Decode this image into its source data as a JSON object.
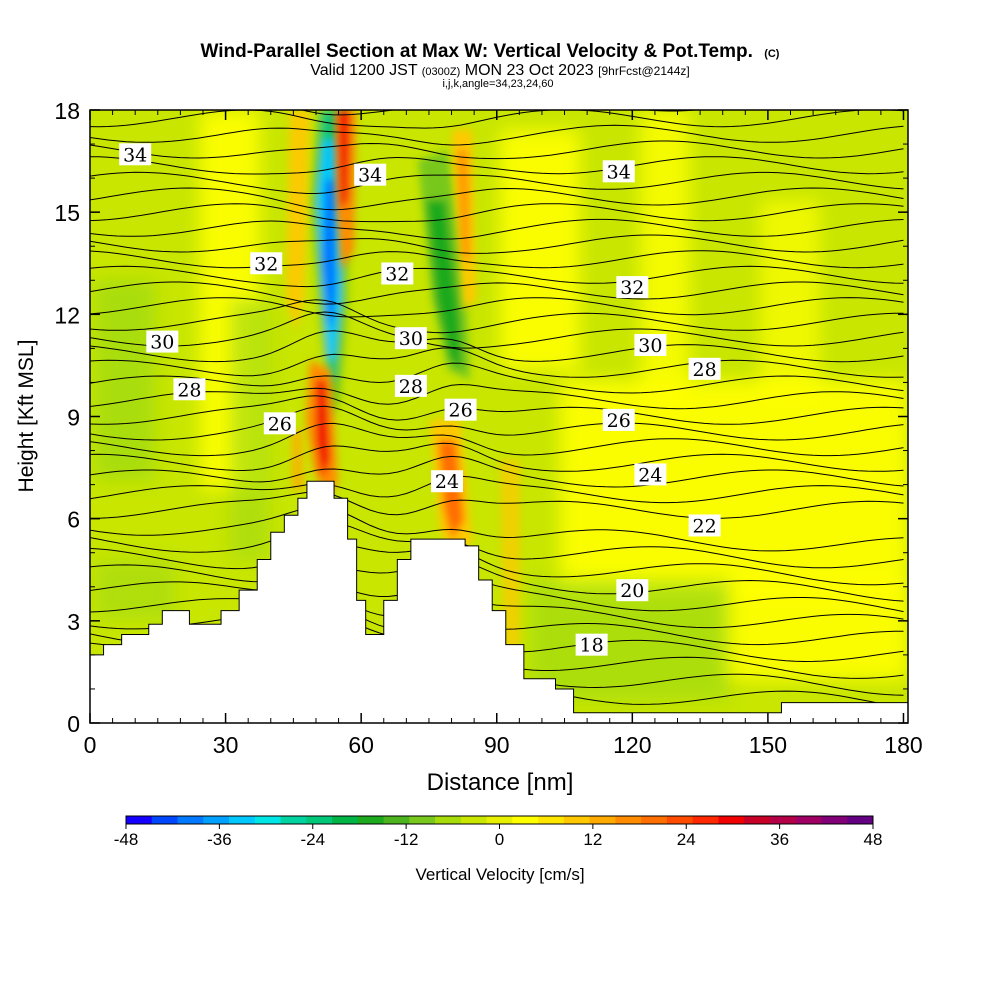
{
  "header": {
    "title": "Wind-Parallel Section at Max W: Vertical Velocity & Pot.Temp.",
    "title_units": "(C)",
    "valid_prefix": "Valid 1200 JST",
    "valid_utc": "(0300Z)",
    "valid_date": "MON 23 Oct 2023",
    "forecast": "[9hrFcst@2144z]",
    "indices": "i,j,k,angle=34,23,24,60"
  },
  "chart_data": {
    "type": "heatmap",
    "xlabel": "Distance [nm]",
    "ylabel": "Height [Kft MSL]",
    "xlim": [
      0,
      181
    ],
    "ylim": [
      0,
      18
    ],
    "x_ticks": [
      0,
      30,
      60,
      90,
      120,
      150,
      180
    ],
    "y_ticks": [
      0,
      3,
      6,
      9,
      12,
      15,
      18
    ],
    "x_tick_labels": [
      "0",
      "30",
      "60",
      "90",
      "120",
      "150",
      "180"
    ],
    "y_tick_labels": [
      "0",
      "3",
      "6",
      "9",
      "12",
      "15",
      "18"
    ],
    "terrain": [
      [
        0,
        2.0
      ],
      [
        3,
        2.3
      ],
      [
        7,
        2.6
      ],
      [
        13,
        2.9
      ],
      [
        16,
        3.3
      ],
      [
        22,
        2.9
      ],
      [
        29,
        3.3
      ],
      [
        33,
        3.9
      ],
      [
        37,
        4.8
      ],
      [
        40,
        5.6
      ],
      [
        43,
        6.1
      ],
      [
        46,
        6.6
      ],
      [
        48,
        7.1
      ],
      [
        52,
        7.1
      ],
      [
        54,
        6.6
      ],
      [
        57,
        5.4
      ],
      [
        59,
        3.6
      ],
      [
        61,
        2.6
      ],
      [
        65,
        3.6
      ],
      [
        68,
        4.8
      ],
      [
        71,
        5.4
      ],
      [
        75,
        5.4
      ],
      [
        80,
        5.4
      ],
      [
        83,
        5.2
      ],
      [
        86,
        4.2
      ],
      [
        89,
        3.3
      ],
      [
        92,
        2.3
      ],
      [
        96,
        1.3
      ],
      [
        103,
        1.0
      ],
      [
        107,
        0.3
      ],
      [
        150,
        0.3
      ],
      [
        153,
        0.6
      ],
      [
        181,
        0.6
      ]
    ],
    "theta_contours": [
      {
        "label": "34",
        "label_positions": [
          [
            10,
            16.7
          ],
          [
            62,
            16.1
          ],
          [
            117,
            16.2
          ]
        ]
      },
      {
        "label": "32",
        "label_positions": [
          [
            39,
            13.5
          ],
          [
            68,
            13.2
          ],
          [
            120,
            12.8
          ]
        ]
      },
      {
        "label": "30",
        "label_positions": [
          [
            16,
            11.2
          ],
          [
            71,
            11.3
          ],
          [
            124,
            11.1
          ]
        ]
      },
      {
        "label": "28",
        "label_positions": [
          [
            22,
            9.8
          ],
          [
            71,
            9.9
          ],
          [
            136,
            10.4
          ]
        ]
      },
      {
        "label": "26",
        "label_positions": [
          [
            42,
            8.8
          ],
          [
            82,
            9.2
          ],
          [
            117,
            8.9
          ]
        ]
      },
      {
        "label": "24",
        "label_positions": [
          [
            79,
            7.1
          ],
          [
            124,
            7.3
          ]
        ]
      },
      {
        "label": "22",
        "label_positions": [
          [
            136,
            5.8
          ]
        ]
      },
      {
        "label": "20",
        "label_positions": [
          [
            120,
            3.9
          ]
        ]
      },
      {
        "label": "18",
        "label_positions": [
          [
            111,
            2.3
          ]
        ]
      }
    ],
    "legend": {
      "label": "Vertical Velocity [cm/s]",
      "min": -48,
      "max": 48,
      "step": 4,
      "tick_values": [
        -48,
        -36,
        -24,
        -12,
        0,
        12,
        24,
        36,
        48
      ],
      "tick_labels": [
        "-48",
        "-36",
        "-24",
        "-12",
        "0",
        "12",
        "24",
        "36",
        "48"
      ],
      "colors": [
        "#1400ff",
        "#0046ff",
        "#0078ff",
        "#00a0ff",
        "#00c8ff",
        "#00e6e6",
        "#00d2a0",
        "#00c878",
        "#00b446",
        "#1eaa1e",
        "#4bb41e",
        "#78c81e",
        "#a5dc0a",
        "#c8e600",
        "#e6f000",
        "#ffff00",
        "#ffe600",
        "#ffc800",
        "#ffaa00",
        "#ff8c00",
        "#ff6e00",
        "#ff4b00",
        "#ff2800",
        "#f00000",
        "#c80028",
        "#b40046",
        "#a00064",
        "#820078",
        "#640082"
      ]
    }
  }
}
